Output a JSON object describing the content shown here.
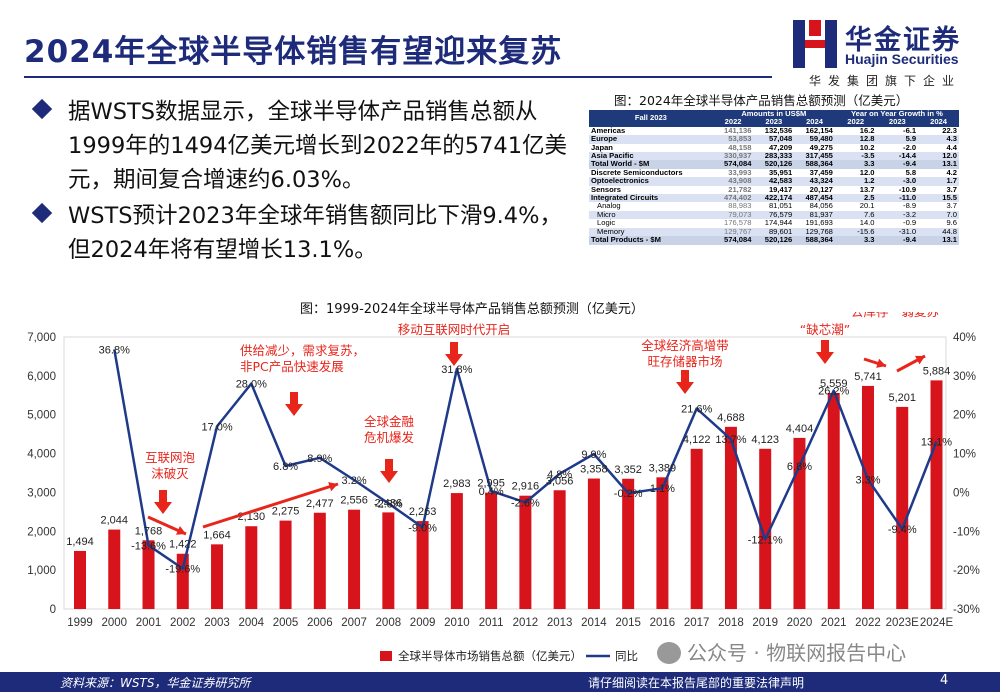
{
  "header": {
    "title": "2024年全球半导体销售有望迎来复苏"
  },
  "logo": {
    "cn": "华金证券",
    "en": "Huajin Securities",
    "sub": "华发集团旗下企业"
  },
  "bullets": [
    "据WSTS数据显示，全球半导体产品销售总额从1999年的1494亿美元增长到2022年的5741亿美元，期间复合增速约6.03%。",
    "WSTS预计2023年全球年销售额同比下滑9.4%，但2024年将有望增长13.1%。"
  ],
  "table": {
    "caption": "图：2024年全球半导体产品销售总额预测（亿美元）",
    "head1": [
      "Fall 2023",
      "Amounts in US$M",
      "Year on Year Growth in %"
    ],
    "head2": [
      "2022",
      "2023",
      "2024",
      "2022",
      "2023",
      "2024"
    ],
    "rows": [
      {
        "name": "Americas",
        "v": [
          "141,136",
          "132,536",
          "162,154",
          "16.2",
          "-6.1",
          "22.3"
        ],
        "cls": "bold"
      },
      {
        "name": "Europe",
        "v": [
          "53,853",
          "57,048",
          "59,480",
          "12.8",
          "5.9",
          "4.3"
        ],
        "cls": "bold shade"
      },
      {
        "name": "Japan",
        "v": [
          "48,158",
          "47,209",
          "49,275",
          "10.2",
          "-2.0",
          "4.4"
        ],
        "cls": "bold"
      },
      {
        "name": "Asia Pacific",
        "v": [
          "330,937",
          "283,333",
          "317,455",
          "-3.5",
          "-14.4",
          "12.0"
        ],
        "cls": "bold shade"
      },
      {
        "name": "Total World - $M",
        "v": [
          "574,084",
          "520,126",
          "588,364",
          "3.3",
          "-9.4",
          "13.1"
        ],
        "cls": "tot"
      },
      {
        "name": "Discrete Semiconductors",
        "v": [
          "33,993",
          "35,951",
          "37,459",
          "12.0",
          "5.8",
          "4.2"
        ],
        "cls": "bold"
      },
      {
        "name": "Optoelectronics",
        "v": [
          "43,908",
          "42,583",
          "43,324",
          "1.2",
          "-3.0",
          "1.7"
        ],
        "cls": "bold shade"
      },
      {
        "name": "Sensors",
        "v": [
          "21,782",
          "19,417",
          "20,127",
          "13.7",
          "-10.9",
          "3.7"
        ],
        "cls": "bold"
      },
      {
        "name": "Integrated Circuits",
        "v": [
          "474,402",
          "422,174",
          "487,454",
          "2.5",
          "-11.0",
          "15.5"
        ],
        "cls": "bold shade"
      },
      {
        "name": "Analog",
        "v": [
          "88,983",
          "81,051",
          "84,056",
          "20.1",
          "-8.9",
          "3.7"
        ],
        "cls": "sub"
      },
      {
        "name": "Micro",
        "v": [
          "79,073",
          "76,579",
          "81,937",
          "7.6",
          "-3.2",
          "7.0"
        ],
        "cls": "sub shade"
      },
      {
        "name": "Logic",
        "v": [
          "176,578",
          "174,944",
          "191,693",
          "14.0",
          "-0.9",
          "9.6"
        ],
        "cls": "sub"
      },
      {
        "name": "Memory",
        "v": [
          "129,767",
          "89,601",
          "129,768",
          "-15.6",
          "-31.0",
          "44.8"
        ],
        "cls": "sub shade"
      },
      {
        "name": "Total Products - $M",
        "v": [
          "574,084",
          "520,126",
          "588,364",
          "3.3",
          "-9.4",
          "13.1"
        ],
        "cls": "tot"
      }
    ]
  },
  "chart": {
    "caption": "图：1999-2024年全球半导体产品销售总额预测（亿美元）"
  },
  "chart_data": {
    "type": "bar",
    "title": "图：1999-2024年全球半导体产品销售总额预测（亿美元）",
    "categories": [
      "1999",
      "2000",
      "2001",
      "2002",
      "2003",
      "2004",
      "2005",
      "2006",
      "2007",
      "2008",
      "2009",
      "2010",
      "2011",
      "2012",
      "2013",
      "2014",
      "2015",
      "2016",
      "2017",
      "2018",
      "2019",
      "2020",
      "2021",
      "2022",
      "2023E",
      "2024E"
    ],
    "series": [
      {
        "name": "全球半导体市场销售总额（亿美元）",
        "type": "bar",
        "color": "#d7141b",
        "values": [
          1494,
          2044,
          1768,
          1422,
          1664,
          2130,
          2275,
          2477,
          2556,
          2486,
          2263,
          2983,
          2995,
          2916,
          3056,
          3358,
          3352,
          3389,
          4122,
          4688,
          4123,
          4404,
          5559,
          5741,
          5201,
          5884
        ],
        "labels": [
          "1,494",
          "2,044",
          "1,768",
          "1,422",
          "1,664",
          "2,130",
          "2,275",
          "2,477",
          "2,556",
          "2,486",
          "2,263",
          "2,983",
          "2,995",
          "2,916",
          "3,056",
          "3,358",
          "3,352",
          "3,389",
          "4,122",
          "4,688",
          "4,123",
          "4,404",
          "5,559",
          "5,741",
          "5,201",
          "5,884"
        ]
      },
      {
        "name": "同比",
        "type": "line",
        "axis": "right",
        "color": "#1f3a8a",
        "values": [
          null,
          36.8,
          -13.6,
          -19.6,
          17.0,
          28.0,
          6.8,
          8.9,
          3.2,
          -2.8,
          -9.0,
          31.8,
          0.4,
          -2.6,
          4.8,
          9.9,
          -0.2,
          1.1,
          21.6,
          13.7,
          -12.1,
          6.8,
          26.2,
          3.3,
          -9.4,
          13.1
        ],
        "labels": [
          "",
          "36.8%",
          "-13.6%",
          "-19.6%",
          "17.0%",
          "28.0%",
          "6.8%",
          "8.9%",
          "3.2%",
          "-2.8%",
          "-9.0%",
          "31.8%",
          "0.4%",
          "-2.6%",
          "4.8%",
          "9.9%",
          "-0.2%",
          "1.1%",
          "21.6%",
          "13.7%",
          "-12.1%",
          "6.8%",
          "26.2%",
          "3.3%",
          "-9.4%",
          "13.1%"
        ]
      }
    ],
    "yleft": {
      "range": [
        0,
        7000
      ],
      "ticks": [
        "0",
        "1,000",
        "2,000",
        "3,000",
        "4,000",
        "5,000",
        "6,000",
        "7,000"
      ]
    },
    "yright": {
      "range": [
        -30,
        40
      ],
      "ticks": [
        "-30%",
        "-20%",
        "-10%",
        "0%",
        "10%",
        "20%",
        "30%",
        "40%"
      ]
    },
    "annotations": [
      "互联网泡\n沫破灭",
      "供给减少，需求复苏，\n非PC产品快速发展",
      "全球金融\n危机爆发",
      "移动互联网时代开启",
      "全球经济高增带\n旺存储器市场",
      "“缺芯潮”",
      "“去库存”“弱复苏”"
    ],
    "annotation_color": "#e8251b",
    "legend": "bottom-center"
  },
  "footer": {
    "source": "资料来源：WSTS，华金证券研究所",
    "notice": "请仔细阅读在本报告尾部的重要法律声明",
    "page": "4"
  },
  "watermark": "公众号 · 物联网报告中心"
}
